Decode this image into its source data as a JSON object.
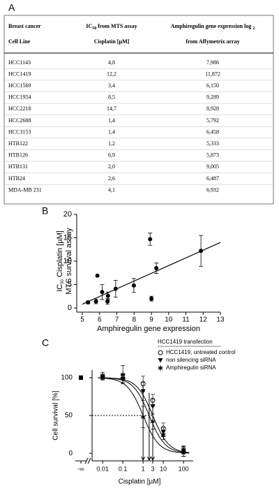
{
  "panel_labels": [
    "A",
    "B",
    "C"
  ],
  "table": {
    "header": [
      {
        "line1": "Breast cancer",
        "line2": "Cell Line"
      },
      {
        "line1": "IC",
        "line1_sub": "50",
        "line1_rest": " from MTS assay",
        "line2": "Cisplatin [µM]"
      },
      {
        "line1": "Amphiregulin gene expression log ",
        "line1_sub": "2",
        "line2": "from Affymetrix array"
      }
    ],
    "rows": [
      [
        "HCC1143",
        "4,8",
        "7,986"
      ],
      [
        "HCC1419",
        "12,2",
        "11,872"
      ],
      [
        "HCC1569",
        "3,4",
        "6,150"
      ],
      [
        "HCC1954",
        "8,5",
        "9,289"
      ],
      [
        "HCC2218",
        "14,7",
        "8,928"
      ],
      [
        "HCC2688",
        "1,4",
        "5,792"
      ],
      [
        "HCC3153",
        "1,4",
        "6,458"
      ],
      [
        "HTB122",
        "1,2",
        "5,333"
      ],
      [
        "HTB126",
        "6,9",
        "5,873"
      ],
      [
        "HTB131",
        "2,0",
        "9,005"
      ],
      [
        "HTB24",
        "2,6",
        "6,487"
      ],
      [
        "MDA-MB 231",
        "4,1",
        "6,932"
      ]
    ]
  },
  "chart_data": [
    {
      "type": "scatter",
      "x_label": "Amphiregulin gene expression",
      "y_label": {
        "text": "IC",
        "sub": "50",
        "rest": " Cisplatin [µM]"
      },
      "y_label_2": "MTS survival assay",
      "x": [
        7.986,
        11.872,
        6.15,
        9.289,
        8.928,
        5.792,
        6.458,
        5.333,
        5.873,
        9.005,
        6.487,
        6.932
      ],
      "values": [
        4.8,
        12.2,
        3.4,
        8.5,
        14.7,
        1.4,
        1.4,
        1.2,
        6.9,
        2.0,
        2.6,
        4.1
      ],
      "errors": [
        1.5,
        3.3,
        1.6,
        1.1,
        1.3,
        0.5,
        0.6,
        0.3,
        null,
        0.5,
        0.8,
        1.8
      ],
      "color": "#000000",
      "xlim": [
        5,
        13
      ],
      "xticks": [
        5,
        6,
        7,
        8,
        9,
        10,
        11,
        12,
        13
      ],
      "ylim": [
        0,
        20
      ],
      "yticks": [
        0,
        5,
        10,
        15,
        20
      ],
      "fit_line": {
        "x": [
          5,
          13
        ],
        "y": [
          0.8,
          14
        ]
      }
    },
    {
      "type": "dose-response",
      "legend_title": "HCC1419 transfection",
      "legend": "upper right",
      "x_label": "Cisplatin [µM]",
      "y_label": "Cell survival [%]",
      "x_scale": "log",
      "x": [
        0.01,
        0.1,
        1,
        3,
        10,
        100
      ],
      "control_tick": "-∞",
      "xlim": [
        0.003,
        300
      ],
      "xticks": [
        0.01,
        0.1,
        1,
        3,
        10,
        100
      ],
      "ylim": [
        -10,
        110
      ],
      "yticks": [
        0,
        50,
        100
      ],
      "reference_line": {
        "y": 50,
        "x_end": 3
      },
      "series": [
        {
          "name": "HCC1419, untreated control",
          "marker": "circle",
          "color": "#000000",
          "control_value": 100,
          "values": [
            100,
            99,
            92,
            70,
            33,
            2
          ],
          "errors": [
            3,
            5,
            10,
            8,
            7,
            6
          ],
          "fit": {
            "ic50": 3,
            "hill": 1.1
          },
          "arrow": {
            "x": 3,
            "y": 70
          }
        },
        {
          "name": "non silencing siRNA",
          "marker": "triangle",
          "color": "#000000",
          "control_value": 100,
          "values": [
            100,
            98,
            82,
            62,
            28,
            4
          ],
          "errors": [
            3,
            6,
            12,
            10,
            6,
            5
          ],
          "fit": {
            "ic50": 2,
            "hill": 1.1
          },
          "arrow": {
            "x": 2,
            "y": 80
          }
        },
        {
          "name": "Amphiregulin siRNA",
          "marker": "asterisk",
          "color": "#000000",
          "control_value": 100,
          "values": [
            103,
            104,
            48,
            42,
            24,
            3
          ],
          "errors": [
            4,
            12,
            14,
            10,
            6,
            7
          ],
          "fit": {
            "ic50": 1,
            "hill": 1.1
          },
          "arrow": {
            "x": 1,
            "y": 90
          }
        }
      ]
    }
  ]
}
